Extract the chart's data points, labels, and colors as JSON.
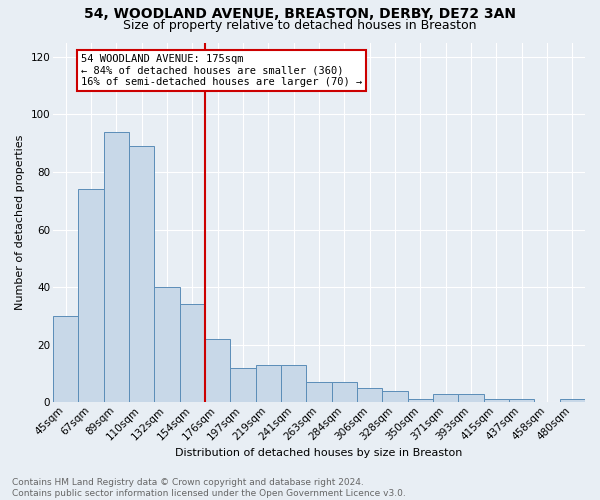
{
  "title": "54, WOODLAND AVENUE, BREASTON, DERBY, DE72 3AN",
  "subtitle": "Size of property relative to detached houses in Breaston",
  "xlabel": "Distribution of detached houses by size in Breaston",
  "ylabel": "Number of detached properties",
  "categories": [
    "45sqm",
    "67sqm",
    "89sqm",
    "110sqm",
    "132sqm",
    "154sqm",
    "176sqm",
    "197sqm",
    "219sqm",
    "241sqm",
    "263sqm",
    "284sqm",
    "306sqm",
    "328sqm",
    "350sqm",
    "371sqm",
    "393sqm",
    "415sqm",
    "437sqm",
    "458sqm",
    "480sqm"
  ],
  "values": [
    30,
    74,
    94,
    89,
    40,
    34,
    22,
    12,
    13,
    13,
    7,
    7,
    5,
    4,
    1,
    3,
    3,
    1,
    1,
    0,
    1
  ],
  "bar_color": "#c8d8e8",
  "bar_edge_color": "#5b8db8",
  "property_label": "54 WOODLAND AVENUE: 175sqm",
  "annotation_line1": "← 84% of detached houses are smaller (360)",
  "annotation_line2": "16% of semi-detached houses are larger (70) →",
  "vline_color": "#cc0000",
  "vline_x_index": 6,
  "annotation_box_color": "#cc0000",
  "ylim": [
    0,
    125
  ],
  "yticks": [
    0,
    20,
    40,
    60,
    80,
    100,
    120
  ],
  "background_color": "#e8eef4",
  "plot_background": "#e8eef4",
  "grid_color": "#ffffff",
  "footer": "Contains HM Land Registry data © Crown copyright and database right 2024.\nContains public sector information licensed under the Open Government Licence v3.0.",
  "title_fontsize": 10,
  "subtitle_fontsize": 9,
  "axis_label_fontsize": 8,
  "tick_fontsize": 7.5,
  "footer_fontsize": 6.5,
  "annotation_fontsize": 7.5
}
